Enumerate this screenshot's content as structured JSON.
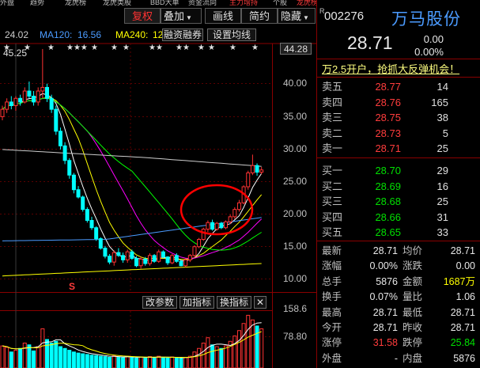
{
  "top_strip": {
    "items": [
      "外盘",
      "趋势",
      "龙虎榜",
      "龙虎类股",
      "BBD大单",
      "资金流向",
      "主力增持",
      "个股",
      "龙虎榜单"
    ]
  },
  "toolbar": {
    "buttons": [
      "复权",
      "叠加",
      "画线",
      "简约",
      "隐藏"
    ],
    "dropdown_arrow": "▼"
  },
  "ma_legend": {
    "ma60": "24.02",
    "ma120_label": "MA120:",
    "ma120": "16.56",
    "ma240_label": "MA240:",
    "ma240": "12",
    "btn_margin": "融资融券",
    "btn_settings": "设置均线"
  },
  "price_axis": {
    "ticks": [
      "44.28",
      "40.00",
      "35.00",
      "30.00",
      "25.00",
      "20.00",
      "15.00",
      "10.00"
    ]
  },
  "chart_labels": {
    "hi_price": "45.25",
    "marker_s": "S"
  },
  "volume_panel": {
    "buttons": [
      "改参数",
      "加指标",
      "换指标"
    ],
    "close_btn": "✕",
    "axis": [
      "158.6",
      "78.80"
    ]
  },
  "colors": {
    "up": "#ff3232",
    "down": "#00ffff",
    "ma5": "#ffffff",
    "ma10": "#ffff00",
    "ma20": "#ff00ff",
    "ma30": "#00ff00",
    "ma60": "#cccccc",
    "ma120": "#4b9bff",
    "ma240": "#ffff00",
    "circle": "#ff0000"
  },
  "chart_data": {
    "type": "candlestick",
    "ylim": [
      12,
      46
    ],
    "candles": [
      [
        36.0,
        37.5,
        35.5,
        37.0
      ],
      [
        37.0,
        38.5,
        36.5,
        38.0
      ],
      [
        38.0,
        38.8,
        37.0,
        37.5
      ],
      [
        37.5,
        38.8,
        36.8,
        38.5
      ],
      [
        38.5,
        39.0,
        37.5,
        38.0
      ],
      [
        38.0,
        40.0,
        37.8,
        39.5
      ],
      [
        39.5,
        40.8,
        38.5,
        38.8
      ],
      [
        38.8,
        39.5,
        37.5,
        38.0
      ],
      [
        38.0,
        40.0,
        37.5,
        39.5
      ],
      [
        39.5,
        45.25,
        38.5,
        40.0
      ],
      [
        40.0,
        40.5,
        38.0,
        38.5
      ],
      [
        38.5,
        39.0,
        36.5,
        37.0
      ],
      [
        37.0,
        37.5,
        33.5,
        34.0
      ],
      [
        34.0,
        34.5,
        31.5,
        32.0
      ],
      [
        32.0,
        32.5,
        29.5,
        30.0
      ],
      [
        30.0,
        30.3,
        27.5,
        28.0
      ],
      [
        28.0,
        28.3,
        25.5,
        26.0
      ],
      [
        26.0,
        26.5,
        24.8,
        25.0
      ],
      [
        25.0,
        25.2,
        23.0,
        23.3
      ],
      [
        23.3,
        23.6,
        21.5,
        21.8
      ],
      [
        21.8,
        22.3,
        20.5,
        20.8
      ],
      [
        20.8,
        21.0,
        19.0,
        19.3
      ],
      [
        19.3,
        19.5,
        17.8,
        18.0
      ],
      [
        18.0,
        18.3,
        16.6,
        16.9
      ],
      [
        16.9,
        17.2,
        15.8,
        16.1
      ],
      [
        16.1,
        17.7,
        15.6,
        17.4
      ],
      [
        17.4,
        18.0,
        16.8,
        17.0
      ],
      [
        17.0,
        17.4,
        16.0,
        16.4
      ],
      [
        16.4,
        17.8,
        16.0,
        17.5
      ],
      [
        17.5,
        17.8,
        16.4,
        16.6
      ],
      [
        16.6,
        16.9,
        15.4,
        15.6
      ],
      [
        15.6,
        16.8,
        15.2,
        16.5
      ],
      [
        16.5,
        16.8,
        15.6,
        15.9
      ],
      [
        15.9,
        17.3,
        15.6,
        17.0
      ],
      [
        17.0,
        17.2,
        16.0,
        16.2
      ],
      [
        16.2,
        17.8,
        16.0,
        17.5
      ],
      [
        17.5,
        17.7,
        16.6,
        16.8
      ],
      [
        16.8,
        16.9,
        15.7,
        16.0
      ],
      [
        16.0,
        17.2,
        15.8,
        17.0
      ],
      [
        17.0,
        17.3,
        16.0,
        16.2
      ],
      [
        16.2,
        16.4,
        15.5,
        15.6
      ],
      [
        15.6,
        16.6,
        15.4,
        16.4
      ],
      [
        16.4,
        17.2,
        16.1,
        17.0
      ],
      [
        17.0,
        18.4,
        16.8,
        18.2
      ],
      [
        18.2,
        19.4,
        18.0,
        19.2
      ],
      [
        19.2,
        20.8,
        19.0,
        20.6
      ],
      [
        20.6,
        21.8,
        20.2,
        21.5
      ],
      [
        21.5,
        21.9,
        20.4,
        20.6
      ],
      [
        20.6,
        21.6,
        20.4,
        21.4
      ],
      [
        21.4,
        21.6,
        20.6,
        20.8
      ],
      [
        20.8,
        21.8,
        20.6,
        21.6
      ],
      [
        21.6,
        22.6,
        21.3,
        22.3
      ],
      [
        22.3,
        23.6,
        22.0,
        23.3
      ],
      [
        23.3,
        24.6,
        23.0,
        24.2
      ],
      [
        24.2,
        26.6,
        24.0,
        26.4
      ],
      [
        26.4,
        28.6,
        26.0,
        28.3
      ],
      [
        28.3,
        30.8,
        28.0,
        29.3
      ],
      [
        29.3,
        29.6,
        27.9,
        28.4
      ],
      [
        28.4,
        29.1,
        28.1,
        28.7
      ]
    ],
    "volumes": [
      62,
      58,
      45,
      50,
      55,
      70,
      65,
      48,
      60,
      110,
      80,
      70,
      75,
      60,
      55,
      50,
      45,
      42,
      40,
      38,
      36,
      35,
      33,
      32,
      30,
      34,
      31,
      29,
      33,
      30,
      28,
      31,
      29,
      32,
      30,
      33,
      29,
      28,
      31,
      29,
      27,
      30,
      33,
      45,
      55,
      70,
      85,
      65,
      60,
      55,
      62,
      75,
      90,
      105,
      125,
      148,
      135,
      118,
      110
    ]
  },
  "right_panel": {
    "r_mark": "R",
    "code": "002276",
    "name": "万马股份",
    "price": "28.71",
    "change": "0.00",
    "change_pct": "0.00%",
    "news": "万2.5开户，抢抓大反弹机会！",
    "asks": [
      {
        "label": "卖五",
        "price": "28.77",
        "vol": "14"
      },
      {
        "label": "卖四",
        "price": "28.76",
        "vol": "165"
      },
      {
        "label": "卖三",
        "price": "28.75",
        "vol": "38"
      },
      {
        "label": "卖二",
        "price": "28.73",
        "vol": "5"
      },
      {
        "label": "卖一",
        "price": "28.71",
        "vol": "25"
      }
    ],
    "bids": [
      {
        "label": "买一",
        "price": "28.70",
        "vol": "29"
      },
      {
        "label": "买二",
        "price": "28.69",
        "vol": "16"
      },
      {
        "label": "买三",
        "price": "28.68",
        "vol": "25"
      },
      {
        "label": "买四",
        "price": "28.66",
        "vol": "31"
      },
      {
        "label": "买五",
        "price": "28.65",
        "vol": "33"
      }
    ],
    "stats": [
      {
        "l1": "最新",
        "v1": "28.71",
        "l2": "均价",
        "v2": "28.71"
      },
      {
        "l1": "涨幅",
        "v1": "0.00%",
        "l2": "涨跌",
        "v2": "0.00"
      },
      {
        "l1": "总手",
        "v1": "5876",
        "l2": "金额",
        "v2": "1687万"
      },
      {
        "l1": "换手",
        "v1": "0.07%",
        "l2": "量比",
        "v2": "1.06"
      },
      {
        "l1": "最高",
        "v1": "28.71",
        "l2": "最低",
        "v2": "28.71"
      },
      {
        "l1": "今开",
        "v1": "28.71",
        "l2": "昨收",
        "v2": "28.71"
      },
      {
        "l1": "涨停",
        "v1": "31.58",
        "l2": "跌停",
        "v2": "25.84"
      },
      {
        "l1": "外盘",
        "v1": "-",
        "l2": "内盘",
        "v2": "5876"
      }
    ]
  }
}
